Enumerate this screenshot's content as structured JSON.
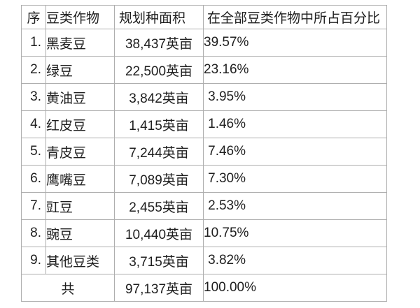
{
  "table": {
    "headers": {
      "index": "序",
      "crop": "豆类作物",
      "area": "规划种面积",
      "percent": "在全部豆类作物中所占百分比"
    },
    "rows": [
      {
        "no": "1.",
        "crop": "黑麦豆",
        "area": "38,437英亩",
        "percent": "39.57%"
      },
      {
        "no": "2.",
        "crop": "绿豆",
        "area": "22,500英亩",
        "percent": "23.16%"
      },
      {
        "no": "3.",
        "crop": "黄油豆",
        "area": "3,842英亩",
        "percent": "3.95%"
      },
      {
        "no": "4.",
        "crop": "红皮豆",
        "area": "1,415英亩",
        "percent": "1.46%"
      },
      {
        "no": "5.",
        "crop": "青皮豆",
        "area": "7,244英亩",
        "percent": "7.46%"
      },
      {
        "no": "6.",
        "crop": "鹰嘴豆",
        "area": "7,089英亩",
        "percent": "7.30%"
      },
      {
        "no": "7.",
        "crop": "豇豆",
        "area": "2,455英亩",
        "percent": "2.53%"
      },
      {
        "no": "8.",
        "crop": "豌豆",
        "area": "10,440英亩",
        "percent": "10.75%"
      },
      {
        "no": "9.",
        "crop": "其他豆类",
        "area": "3,715英亩",
        "percent": "3.82%"
      }
    ],
    "total": {
      "label": "共",
      "area": "97,137英亩",
      "percent": "100.00%"
    }
  },
  "colors": {
    "border": "#aeaeae",
    "text": "#1e1e1e",
    "background": "#ffffff"
  }
}
